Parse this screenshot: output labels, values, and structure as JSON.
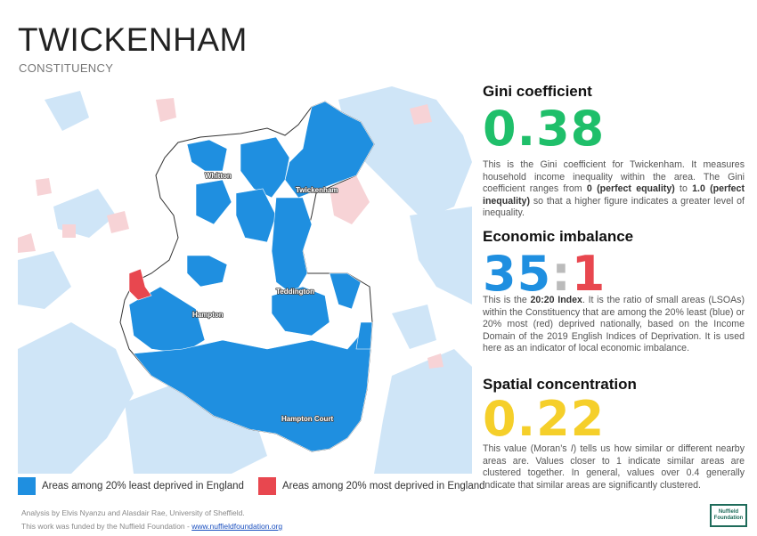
{
  "header": {
    "title": "TWICKENHAM",
    "subtitle": "CONSTITUENCY"
  },
  "map": {
    "places": [
      "Whitton",
      "Twickenham",
      "Teddington",
      "Hampton",
      "Hampton Court"
    ],
    "colors": {
      "least_deprived": "#1f8fe0",
      "most_deprived": "#e8474f",
      "bg_blue": "#cfe5f7",
      "bg_red": "#f7d3d6"
    }
  },
  "legend": {
    "least": "Areas among 20% least deprived in England",
    "most": "Areas among 20% most deprived in England"
  },
  "gini": {
    "heading": "Gini coefficient",
    "value": "0.38",
    "color": "#1fbf6a",
    "desc_1": "This is the Gini coefficient for Twickenham. It measures household income inequality within the area. The Gini coefficient ranges from ",
    "desc_b1": "0 (perfect equality)",
    "desc_2": " to ",
    "desc_b2": "1.0 (perfect inequality)",
    "desc_3": " so that a higher figure indicates a greater level of inequality."
  },
  "imbalance": {
    "heading": "Economic imbalance",
    "left": "35",
    "sep": ":",
    "right": "1",
    "left_color": "#1f8fe0",
    "sep_color": "#bbbbbb",
    "right_color": "#e8474f",
    "desc_1": "This is the ",
    "desc_b": "20:20 Index",
    "desc_2": ". It is the ratio of small areas (LSOAs) within the Constituency that are among the 20% least (blue) or 20% most (red) deprived nationally, based on the Income Domain of the 2019 English Indices of Deprivation. It is used here as an indicator of local economic imbalance."
  },
  "spatial": {
    "heading": "Spatial concentration",
    "value": "0.22",
    "color": "#f5cf2a",
    "desc_1": "This value (Moran’s ",
    "desc_i": "I",
    "desc_2": ") tells us how similar or different nearby areas are. Values closer to 1 indicate similar areas are clustered together. In general, values over 0.4 generally indicate that similar areas are significantly clustered."
  },
  "footer": {
    "analysis": "Analysis by Elvis Nyanzu and Alasdair Rae, University of Sheffield.",
    "funded": "This work was funded by the Nuffield Foundation - ",
    "link": "www.nuffieldfoundation.org"
  },
  "logo": {
    "line1": "Nuffield",
    "line2": "Foundation"
  }
}
